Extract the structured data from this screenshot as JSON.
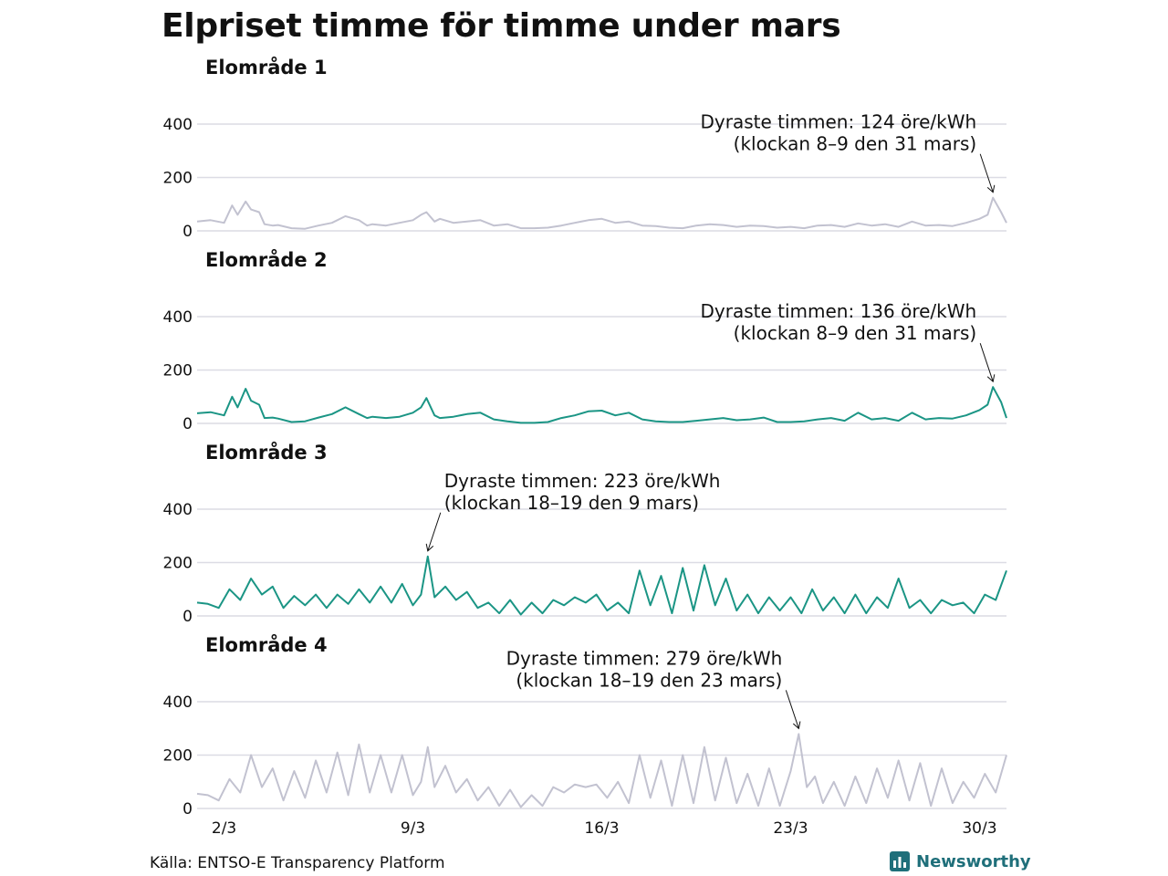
{
  "title": "Elpriset timme för timme under mars",
  "source": "Källa: ENTSO-E Transparency Platform",
  "brand": {
    "name": "Newsworthy",
    "icon": "bar-chart-icon",
    "color": "#1f6f7a"
  },
  "colors": {
    "gray": "#c2c2d0",
    "teal": "#1b9585",
    "grid": "#dcdce4"
  },
  "chart_data": [
    {
      "type": "line",
      "title": "Elområde 1",
      "color": "gray",
      "ylim": [
        0,
        400
      ],
      "yticks": [
        "0",
        "200",
        "400"
      ],
      "xlabels": [
        "2/3",
        "9/3",
        "16/3",
        "23/3",
        "30/3"
      ],
      "xlabel_days": [
        2,
        9,
        16,
        23,
        30
      ],
      "x_domain_days": [
        1,
        31
      ],
      "series": [
        {
          "name": "öre/kWh",
          "x": [
            1.0,
            1.5,
            2.0,
            2.3,
            2.5,
            2.8,
            3.0,
            3.3,
            3.5,
            3.8,
            4.0,
            4.5,
            5.0,
            5.5,
            6.0,
            6.5,
            7.0,
            7.3,
            7.5,
            8.0,
            8.5,
            9.0,
            9.3,
            9.5,
            9.8,
            10.0,
            10.5,
            11.0,
            11.5,
            12.0,
            12.5,
            13.0,
            13.5,
            14.0,
            14.5,
            15.0,
            15.5,
            16.0,
            16.5,
            17.0,
            17.5,
            18.0,
            18.5,
            19.0,
            19.5,
            20.0,
            20.5,
            21.0,
            21.5,
            22.0,
            22.5,
            23.0,
            23.5,
            24.0,
            24.5,
            25.0,
            25.5,
            26.0,
            26.5,
            27.0,
            27.5,
            28.0,
            28.5,
            29.0,
            29.5,
            30.0,
            30.3,
            30.5,
            30.8,
            31.0
          ],
          "values": [
            35,
            40,
            30,
            95,
            60,
            110,
            80,
            70,
            25,
            20,
            22,
            10,
            8,
            20,
            30,
            55,
            40,
            20,
            25,
            20,
            30,
            40,
            60,
            70,
            35,
            45,
            30,
            35,
            40,
            20,
            25,
            10,
            10,
            12,
            20,
            30,
            40,
            45,
            30,
            35,
            20,
            18,
            12,
            10,
            20,
            25,
            22,
            15,
            20,
            18,
            12,
            15,
            10,
            20,
            22,
            15,
            28,
            20,
            25,
            15,
            35,
            20,
            22,
            18,
            30,
            45,
            60,
            124,
            70,
            30
          ]
        }
      ],
      "annotation": {
        "lines": [
          "Dyraste timmen: 124 öre/kWh",
          "(klockan 8–9 den 31 mars)"
        ],
        "x_day": 30.5,
        "value": 124,
        "align": "end"
      }
    },
    {
      "type": "line",
      "title": "Elområde 2",
      "color": "teal",
      "ylim": [
        0,
        400
      ],
      "yticks": [
        "0",
        "200",
        "400"
      ],
      "xlabels": [
        "2/3",
        "9/3",
        "16/3",
        "23/3",
        "30/3"
      ],
      "xlabel_days": [
        2,
        9,
        16,
        23,
        30
      ],
      "x_domain_days": [
        1,
        31
      ],
      "series": [
        {
          "name": "öre/kWh",
          "x": [
            1.0,
            1.5,
            2.0,
            2.3,
            2.5,
            2.8,
            3.0,
            3.3,
            3.5,
            3.8,
            4.0,
            4.5,
            5.0,
            5.5,
            6.0,
            6.5,
            7.0,
            7.3,
            7.5,
            8.0,
            8.5,
            9.0,
            9.3,
            9.5,
            9.8,
            10.0,
            10.5,
            11.0,
            11.5,
            12.0,
            12.5,
            13.0,
            13.5,
            14.0,
            14.5,
            15.0,
            15.5,
            16.0,
            16.5,
            17.0,
            17.5,
            18.0,
            18.5,
            19.0,
            19.5,
            20.0,
            20.5,
            21.0,
            21.5,
            22.0,
            22.5,
            23.0,
            23.5,
            24.0,
            24.5,
            25.0,
            25.5,
            26.0,
            26.5,
            27.0,
            27.5,
            28.0,
            28.5,
            29.0,
            29.5,
            30.0,
            30.3,
            30.5,
            30.8,
            31.0
          ],
          "values": [
            38,
            42,
            30,
            100,
            60,
            130,
            85,
            70,
            20,
            22,
            18,
            5,
            8,
            22,
            35,
            60,
            35,
            20,
            25,
            20,
            25,
            40,
            60,
            95,
            30,
            20,
            25,
            35,
            40,
            15,
            8,
            2,
            2,
            5,
            20,
            30,
            45,
            48,
            30,
            40,
            15,
            8,
            5,
            5,
            10,
            15,
            20,
            12,
            15,
            22,
            5,
            5,
            8,
            15,
            20,
            10,
            40,
            15,
            20,
            10,
            40,
            15,
            20,
            18,
            30,
            50,
            70,
            136,
            80,
            20
          ]
        }
      ],
      "annotation": {
        "lines": [
          "Dyraste timmen: 136 öre/kWh",
          "(klockan 8–9 den 31 mars)"
        ],
        "x_day": 30.5,
        "value": 136,
        "align": "end"
      }
    },
    {
      "type": "line",
      "title": "Elområde 3",
      "color": "teal",
      "ylim": [
        0,
        400
      ],
      "yticks": [
        "0",
        "200",
        "400"
      ],
      "xlabels": [
        "2/3",
        "9/3",
        "16/3",
        "23/3",
        "30/3"
      ],
      "xlabel_days": [
        2,
        9,
        16,
        23,
        30
      ],
      "x_domain_days": [
        1,
        31
      ],
      "series": [
        {
          "name": "öre/kWh",
          "x": [
            1.0,
            1.4,
            1.8,
            2.2,
            2.6,
            3.0,
            3.4,
            3.8,
            4.2,
            4.6,
            5.0,
            5.4,
            5.8,
            6.2,
            6.6,
            7.0,
            7.4,
            7.8,
            8.2,
            8.6,
            9.0,
            9.3,
            9.55,
            9.8,
            10.2,
            10.6,
            11.0,
            11.4,
            11.8,
            12.2,
            12.6,
            13.0,
            13.4,
            13.8,
            14.2,
            14.6,
            15.0,
            15.4,
            15.8,
            16.2,
            16.6,
            17.0,
            17.4,
            17.8,
            18.2,
            18.6,
            19.0,
            19.4,
            19.8,
            20.2,
            20.6,
            21.0,
            21.4,
            21.8,
            22.2,
            22.6,
            23.0,
            23.4,
            23.8,
            24.2,
            24.6,
            25.0,
            25.4,
            25.8,
            26.2,
            26.6,
            27.0,
            27.4,
            27.8,
            28.2,
            28.6,
            29.0,
            29.4,
            29.8,
            30.2,
            30.6,
            31.0
          ],
          "values": [
            50,
            45,
            30,
            100,
            60,
            140,
            80,
            110,
            30,
            75,
            40,
            80,
            30,
            80,
            45,
            100,
            50,
            110,
            50,
            120,
            40,
            80,
            223,
            70,
            110,
            60,
            90,
            30,
            50,
            10,
            60,
            5,
            50,
            10,
            60,
            40,
            70,
            50,
            80,
            20,
            50,
            10,
            170,
            40,
            150,
            10,
            180,
            20,
            190,
            40,
            140,
            20,
            80,
            10,
            70,
            20,
            70,
            10,
            100,
            20,
            70,
            10,
            80,
            10,
            70,
            30,
            140,
            30,
            60,
            10,
            60,
            40,
            50,
            10,
            80,
            60,
            170
          ]
        }
      ],
      "annotation": {
        "lines": [
          "Dyraste timmen: 223 öre/kWh",
          "(klockan 18–19 den 9 mars)"
        ],
        "x_day": 9.55,
        "value": 223,
        "align": "start"
      }
    },
    {
      "type": "line",
      "title": "Elområde 4",
      "color": "gray",
      "ylim": [
        0,
        400
      ],
      "yticks": [
        "0",
        "200",
        "400"
      ],
      "xlabels": [
        "2/3",
        "9/3",
        "16/3",
        "23/3",
        "30/3"
      ],
      "xlabel_days": [
        2,
        9,
        16,
        23,
        30
      ],
      "x_domain_days": [
        1,
        31
      ],
      "series": [
        {
          "name": "öre/kWh",
          "x": [
            1.0,
            1.4,
            1.8,
            2.2,
            2.6,
            3.0,
            3.4,
            3.8,
            4.2,
            4.6,
            5.0,
            5.4,
            5.8,
            6.2,
            6.6,
            7.0,
            7.4,
            7.8,
            8.2,
            8.6,
            9.0,
            9.3,
            9.55,
            9.8,
            10.2,
            10.6,
            11.0,
            11.4,
            11.8,
            12.2,
            12.6,
            13.0,
            13.4,
            13.8,
            14.2,
            14.6,
            15.0,
            15.4,
            15.8,
            16.2,
            16.6,
            17.0,
            17.4,
            17.8,
            18.2,
            18.6,
            19.0,
            19.4,
            19.8,
            20.2,
            20.6,
            21.0,
            21.4,
            21.8,
            22.2,
            22.6,
            23.0,
            23.3,
            23.6,
            23.9,
            24.2,
            24.6,
            25.0,
            25.4,
            25.8,
            26.2,
            26.6,
            27.0,
            27.4,
            27.8,
            28.2,
            28.6,
            29.0,
            29.4,
            29.8,
            30.2,
            30.6,
            31.0
          ],
          "values": [
            55,
            50,
            30,
            110,
            60,
            200,
            80,
            150,
            30,
            140,
            40,
            180,
            60,
            210,
            50,
            240,
            60,
            200,
            60,
            200,
            50,
            100,
            230,
            80,
            160,
            60,
            110,
            30,
            80,
            10,
            70,
            5,
            50,
            10,
            80,
            60,
            90,
            80,
            90,
            40,
            100,
            20,
            200,
            40,
            180,
            10,
            200,
            20,
            230,
            30,
            190,
            20,
            130,
            10,
            150,
            10,
            140,
            279,
            80,
            120,
            20,
            100,
            10,
            120,
            20,
            150,
            40,
            180,
            30,
            170,
            10,
            150,
            20,
            100,
            40,
            130,
            60,
            200
          ]
        }
      ],
      "annotation": {
        "lines": [
          "Dyraste timmen: 279 öre/kWh",
          "(klockan 18–19 den 23 mars)"
        ],
        "x_day": 23.3,
        "value": 279,
        "align": "end"
      }
    }
  ]
}
